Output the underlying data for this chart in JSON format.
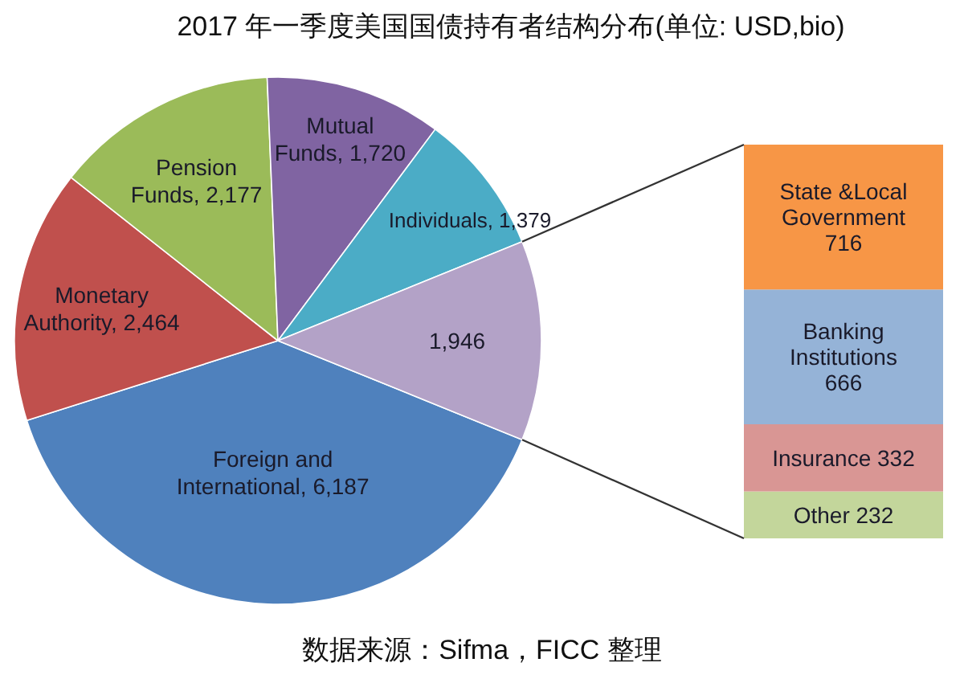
{
  "chart_data": [
    {
      "type": "pie",
      "title": "2017 年一季度美国国债持有者结构分布(单位: USD,bio)",
      "categories": [
        "Foreign and International",
        "Monetary Authority",
        "Pension Funds",
        "Mutual Funds",
        "Individuals",
        null
      ],
      "values": [
        6187,
        2464,
        2177,
        1720,
        1379,
        1946
      ],
      "value_labels": [
        "6,187",
        "2,464",
        "2,177",
        "1,720",
        "1,379",
        "1,946"
      ],
      "colors": [
        "#4f81bd",
        "#c0504d",
        "#9bbb59",
        "#8064a2",
        "#4bacc6",
        "#b3a2c7"
      ],
      "annotations": [
        "数据来源：Sifma，FICC 整理"
      ]
    },
    {
      "type": "bar",
      "stacked": true,
      "data_labels": true,
      "categories": [
        null
      ],
      "series": [
        {
          "name": "Other",
          "color": "#c3d69b",
          "values": [
            232
          ]
        },
        {
          "name": "Insurance",
          "color": "#d99694",
          "values": [
            332
          ]
        },
        {
          "name": "Banking Institutions",
          "color": "#95b3d7",
          "values": [
            666
          ]
        },
        {
          "name": "State &Local Government",
          "color": "#f79646",
          "values": [
            716
          ]
        }
      ]
    }
  ]
}
